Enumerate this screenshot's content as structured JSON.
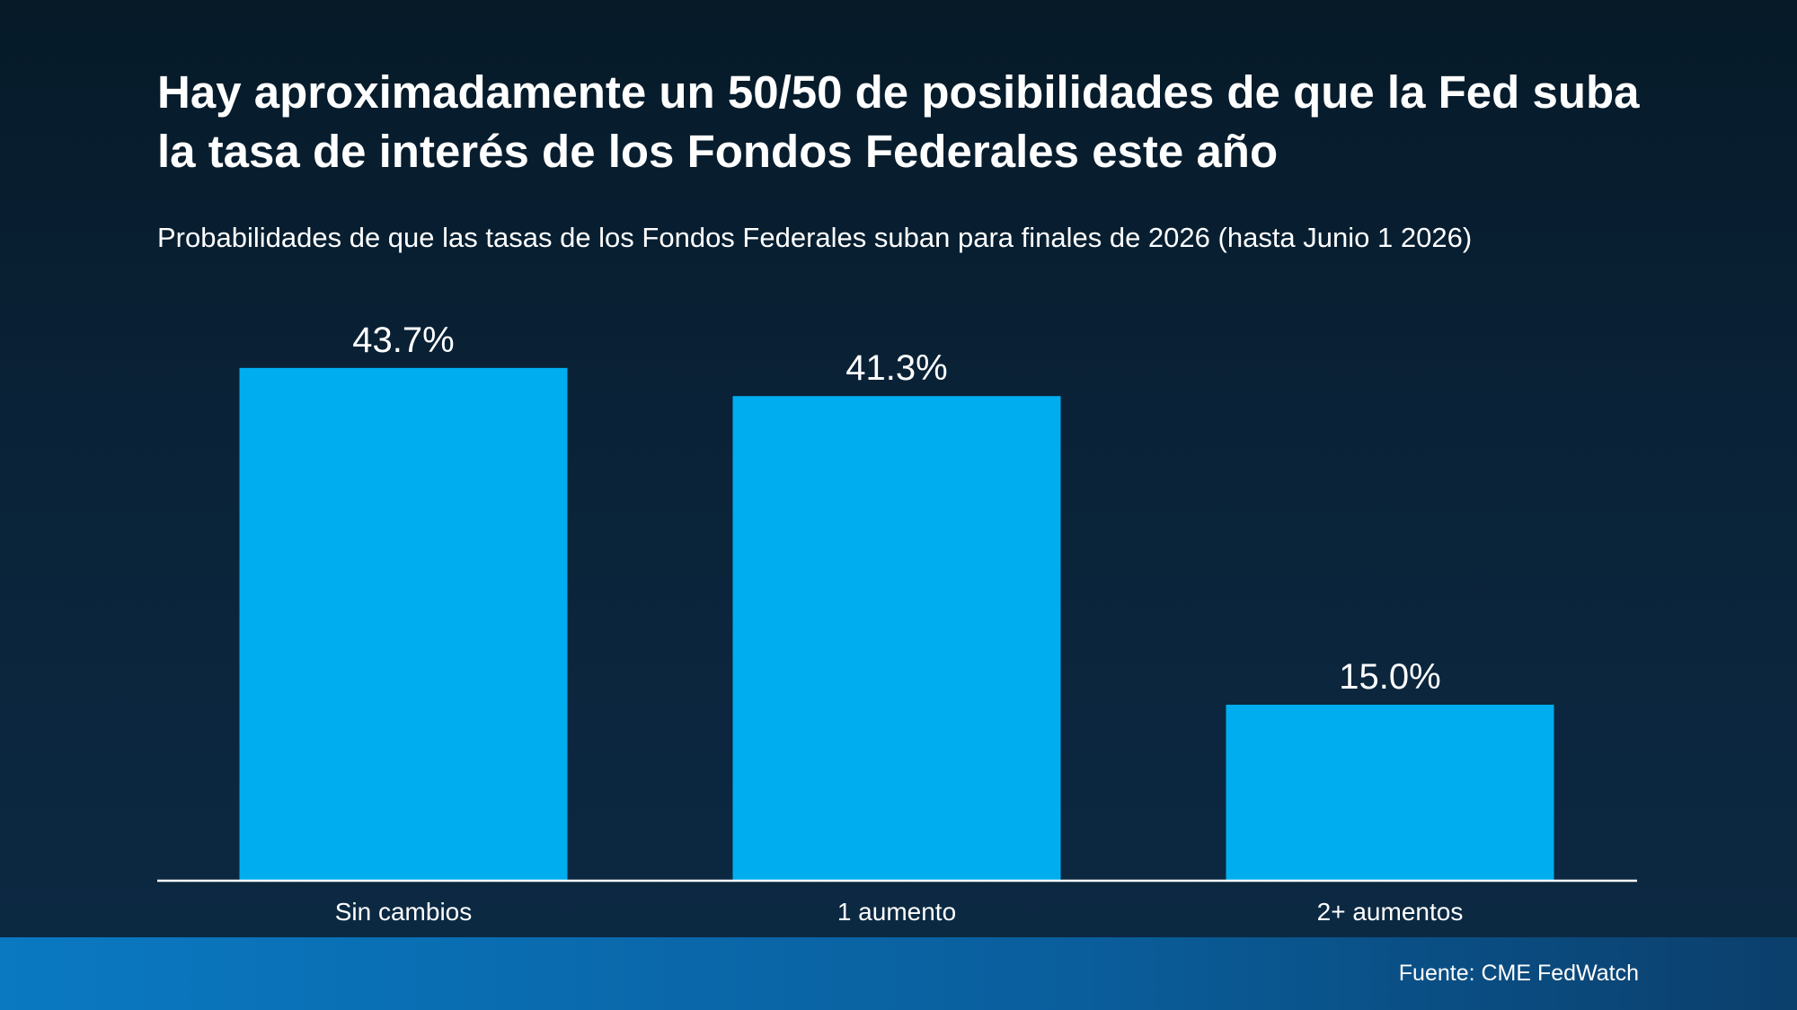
{
  "title": "Hay aproximadamente un 50/50 de posibilidades de que la Fed suba la tasa de interés de los Fondos Federales este año",
  "subtitle": "Probabilidades de que las tasas de los Fondos Federales suban para finales de 2026 (hasta Junio 1 2026)",
  "source": "Fuente: CME FedWatch",
  "chart_data": {
    "type": "bar",
    "categories": [
      "Sin cambios",
      "1 aumento",
      "2+ aumentos"
    ],
    "values": [
      43.7,
      41.3,
      15.0
    ],
    "value_labels": [
      "43.7%",
      "41.3%",
      "15.0%"
    ],
    "ylim": [
      0,
      50
    ],
    "grid": false,
    "legend": "none",
    "bar_color": "#00aeef"
  },
  "colors": {
    "background": "#0a2237",
    "footer": "#0a6aae",
    "text": "#ffffff"
  }
}
